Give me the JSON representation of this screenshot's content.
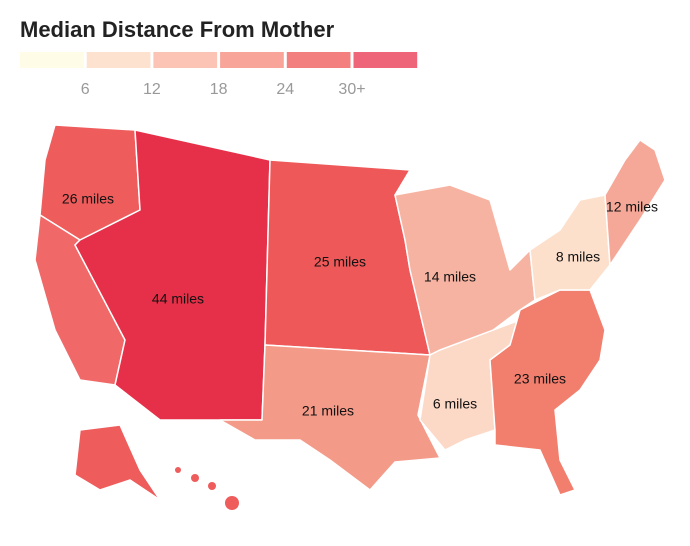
{
  "header": {
    "title": "Median Distance From Mother"
  },
  "legend": {
    "colors": [
      "#fefbe6",
      "#fde2d0",
      "#fbc4b4",
      "#f8a498",
      "#f3807e",
      "#ee6478"
    ],
    "labels": [
      "6",
      "12",
      "18",
      "24",
      "30+"
    ]
  },
  "regions": [
    {
      "label": "26 miles"
    },
    {
      "label": "44 miles"
    },
    {
      "label": "25 miles"
    },
    {
      "label": "14 miles"
    },
    {
      "label": "12 miles"
    },
    {
      "label": "8 miles"
    },
    {
      "label": "23 miles"
    },
    {
      "label": "6 miles"
    },
    {
      "label": "21 miles"
    }
  ]
}
